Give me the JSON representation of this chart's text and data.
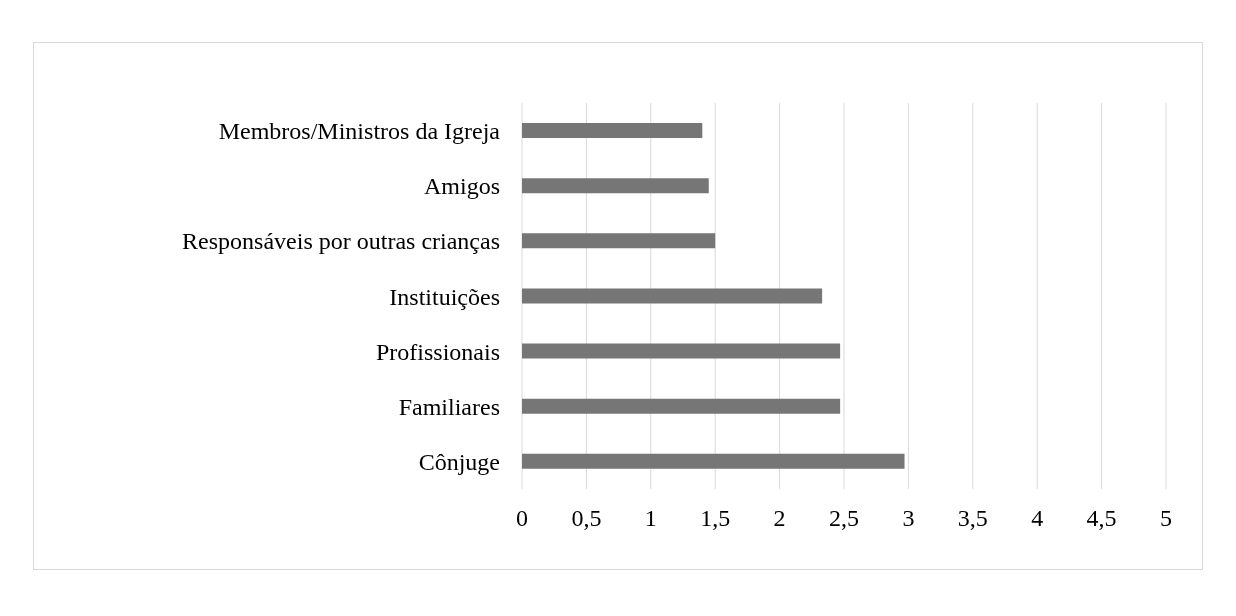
{
  "chart_data": {
    "type": "bar",
    "orientation": "horizontal",
    "categories": [
      "Membros/Ministros da Igreja",
      "Amigos",
      "Responsáveis por outras crianças",
      "Instituições",
      "Profissionais",
      "Familiares",
      "Cônjuge"
    ],
    "values": [
      1.4,
      1.45,
      1.5,
      2.33,
      2.47,
      2.47,
      2.97
    ],
    "color": "#767676",
    "xlim": [
      0,
      5
    ],
    "xticks": [
      0,
      {
        "value": 0.5,
        "label": "0,5"
      },
      1,
      {
        "value": 1.5,
        "label": "1,5"
      },
      2,
      {
        "value": 2.5,
        "label": "2,5"
      },
      3,
      {
        "value": 3.5,
        "label": "3,5"
      },
      4,
      {
        "value": 4.5,
        "label": "4,5"
      },
      5
    ],
    "grid": "x"
  }
}
